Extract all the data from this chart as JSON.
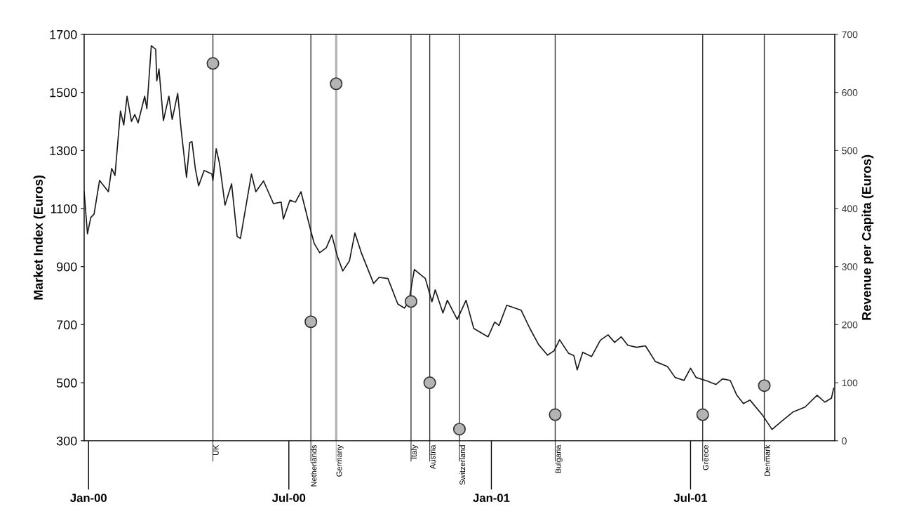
{
  "chart_data": {
    "type": "line",
    "ylabel": "Market Index (Euros)",
    "y2label": "Revenue per Capita (Euros)",
    "xlim": [
      "1999-12-28",
      "2001-11-09"
    ],
    "xticks": [
      {
        "value": "2000-01-01",
        "label": "Jan-00"
      },
      {
        "value": "2000-07-01",
        "label": "Jul-00"
      },
      {
        "value": "2001-01-01",
        "label": "Jan-01"
      },
      {
        "value": "2001-07-01",
        "label": "Jul-01"
      }
    ],
    "ylim": [
      300,
      1700
    ],
    "yticks": [
      300,
      500,
      700,
      900,
      1100,
      1300,
      1500,
      1700
    ],
    "y2lim": [
      0,
      700
    ],
    "y2ticks": [
      0,
      100,
      200,
      300,
      400,
      500,
      600,
      700
    ],
    "grid": false,
    "series": [
      {
        "color": "#1a1a1a",
        "marker": "none",
        "line_style": "solid",
        "x": [
          "1999-12-28",
          "1999-12-31",
          "2000-01-03",
          "2000-01-06",
          "2000-01-11",
          "2000-01-19",
          "2000-01-22",
          "2000-01-25",
          "2000-01-30",
          "2000-02-02",
          "2000-02-05",
          "2000-02-09",
          "2000-02-12",
          "2000-02-15",
          "2000-02-21",
          "2000-02-23",
          "2000-02-27",
          "2000-03-02",
          "2000-03-03",
          "2000-03-05",
          "2000-03-09",
          "2000-03-14",
          "2000-03-17",
          "2000-03-22",
          "2000-03-25",
          "2000-03-30",
          "2000-04-02",
          "2000-04-04",
          "2000-04-07",
          "2000-04-10",
          "2000-04-15",
          "2000-04-22",
          "2000-04-23",
          "2000-04-26",
          "2000-04-29",
          "2000-05-04",
          "2000-05-10",
          "2000-05-15",
          "2000-05-18",
          "2000-05-28",
          "2000-06-01",
          "2000-06-08",
          "2000-06-17",
          "2000-06-24",
          "2000-06-26",
          "2000-07-02",
          "2000-07-07",
          "2000-07-12",
          "2000-07-20",
          "2000-07-24",
          "2000-07-29",
          "2000-08-04",
          "2000-08-09",
          "2000-08-14",
          "2000-08-19",
          "2000-08-25",
          "2000-08-30",
          "2000-09-05",
          "2000-09-16",
          "2000-09-21",
          "2000-09-29",
          "2000-10-08",
          "2000-10-14",
          "2000-10-18",
          "2000-10-23",
          "2000-11-02",
          "2000-11-08",
          "2000-11-11",
          "2000-11-18",
          "2000-11-22",
          "2000-12-01",
          "2000-12-09",
          "2000-12-16",
          "2000-12-29",
          "2001-01-04",
          "2001-01-08",
          "2001-01-15",
          "2001-01-28",
          "2001-02-05",
          "2001-02-13",
          "2001-02-21",
          "2001-02-27",
          "2001-03-04",
          "2001-03-12",
          "2001-03-17",
          "2001-03-20",
          "2001-03-25",
          "2001-04-02",
          "2001-04-10",
          "2001-04-17",
          "2001-04-23",
          "2001-04-29",
          "2001-05-05",
          "2001-05-13",
          "2001-05-21",
          "2001-05-30",
          "2001-06-10",
          "2001-06-17",
          "2001-06-25",
          "2001-07-01",
          "2001-07-06",
          "2001-07-16",
          "2001-07-24",
          "2001-07-30",
          "2001-08-06",
          "2001-08-12",
          "2001-08-18",
          "2001-08-24",
          "2001-09-05",
          "2001-09-13",
          "2001-09-22",
          "2001-10-02",
          "2001-10-13",
          "2001-10-24",
          "2001-10-31",
          "2001-11-06",
          "2001-11-08"
        ],
        "values": [
          1158,
          1013,
          1069,
          1081,
          1197,
          1158,
          1238,
          1214,
          1436,
          1388,
          1487,
          1400,
          1424,
          1395,
          1487,
          1444,
          1661,
          1649,
          1540,
          1581,
          1403,
          1487,
          1407,
          1497,
          1376,
          1207,
          1328,
          1330,
          1238,
          1178,
          1231,
          1219,
          1197,
          1306,
          1255,
          1112,
          1185,
          1004,
          997,
          1219,
          1158,
          1195,
          1117,
          1122,
          1064,
          1129,
          1122,
          1158,
          1037,
          980,
          948,
          965,
          1009,
          936,
          885,
          919,
          1016,
          946,
          842,
          863,
          859,
          771,
          757,
          779,
          890,
          859,
          779,
          820,
          740,
          784,
          718,
          784,
          687,
          658,
          709,
          697,
          767,
          750,
          687,
          631,
          595,
          610,
          648,
          602,
          593,
          544,
          605,
          590,
          646,
          665,
          639,
          658,
          629,
          622,
          627,
          573,
          556,
          518,
          508,
          550,
          518,
          506,
          494,
          513,
          508,
          457,
          428,
          440,
          385,
          339,
          368,
          399,
          416,
          457,
          433,
          447,
          481
        ]
      },
      {
        "type": "scatter",
        "axis": "y2",
        "color": "#b4b4b4",
        "marker": "circle",
        "x": [
          "2000-04-23",
          "2000-07-21",
          "2000-08-13",
          "2000-10-20",
          "2000-11-06",
          "2000-12-03",
          "2001-02-28",
          "2001-07-12",
          "2001-09-06"
        ],
        "values": [
          650,
          205,
          615,
          240,
          100,
          20,
          45,
          45,
          95
        ]
      }
    ],
    "ref_lines": [
      {
        "axis": "x",
        "value": "2000-04-23",
        "label": "UK",
        "color": "#333333"
      },
      {
        "axis": "x",
        "value": "2000-07-21",
        "label": "Netherlands",
        "color": "#333333"
      },
      {
        "axis": "x",
        "value": "2000-08-13",
        "label": "Germany",
        "color": "#b0b0b0"
      },
      {
        "axis": "x",
        "value": "2000-10-20",
        "label": "Italy",
        "color": "#333333"
      },
      {
        "axis": "x",
        "value": "2000-11-06",
        "label": "Austria",
        "color": "#333333"
      },
      {
        "axis": "x",
        "value": "2000-12-03",
        "label": "Switzerland",
        "color": "#333333"
      },
      {
        "axis": "x",
        "value": "2001-02-28",
        "label": "Bulgaria",
        "color": "#333333"
      },
      {
        "axis": "x",
        "value": "2001-07-12",
        "label": "Greece",
        "color": "#333333"
      },
      {
        "axis": "x",
        "value": "2001-09-06",
        "label": "Denmark",
        "color": "#333333"
      }
    ]
  }
}
